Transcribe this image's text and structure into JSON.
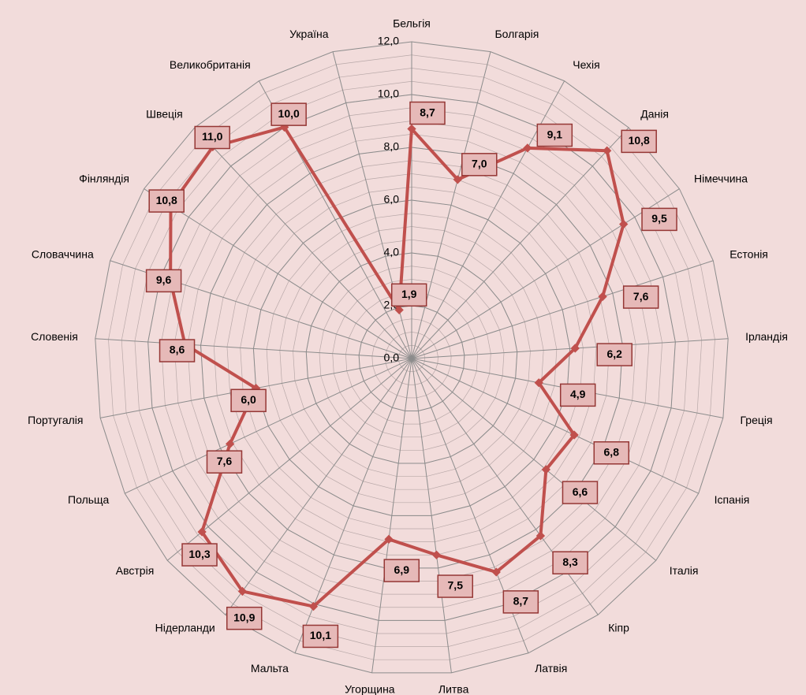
{
  "chart_data": {
    "type": "radar",
    "categories": [
      "Бельгія",
      "Болгарія",
      "Чехія",
      "Данія",
      "Німеччина",
      "Естонія",
      "Ірландія",
      "Греція",
      "Іспанія",
      "Італія",
      "Кіпр",
      "Латвія",
      "Литва",
      "Угорщина",
      "Мальта",
      "Нідерланди",
      "Австрія",
      "Польща",
      "Португалія",
      "Словенія",
      "Словаччина",
      "Фінляндія",
      "Швеція",
      "Великобританія",
      "Україна"
    ],
    "values": [
      8.7,
      7.0,
      9.1,
      10.8,
      9.5,
      7.6,
      6.2,
      4.9,
      6.8,
      6.6,
      8.3,
      8.7,
      7.5,
      6.9,
      10.1,
      10.9,
      10.3,
      7.6,
      6.0,
      8.6,
      9.6,
      10.8,
      11.0,
      10.0,
      1.9
    ],
    "value_labels": [
      "8,7",
      "7,0",
      "9,1",
      "10,8",
      "9,5",
      "7,6",
      "6,2",
      "4,9",
      "6,8",
      "6,6",
      "8,3",
      "8,7",
      "7,5",
      "6,9",
      "10,1",
      "10,9",
      "10,3",
      "7,6",
      "6,0",
      "8,6",
      "9,6",
      "10,8",
      "11,0",
      "10,0",
      "1,9"
    ],
    "color": "#c0504d",
    "ylim": [
      0,
      12
    ],
    "yticks": [
      {
        "value": 0,
        "label": "0,0"
      },
      {
        "value": 2,
        "label": "2,0"
      },
      {
        "value": 4,
        "label": "4,0"
      },
      {
        "value": 6,
        "label": "6,0"
      },
      {
        "value": 8,
        "label": "8,0"
      },
      {
        "value": 10,
        "label": "10,0"
      },
      {
        "value": 12,
        "label": "12,0"
      }
    ],
    "grid": true,
    "minor_grid_step": 0.5
  }
}
